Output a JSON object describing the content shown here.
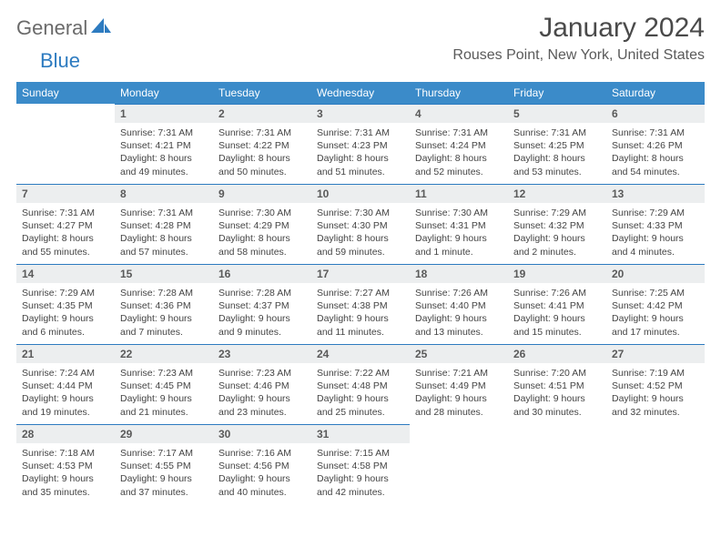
{
  "logo": {
    "part1": "General",
    "part2": "Blue"
  },
  "title": "January 2024",
  "location": "Rouses Point, New York, United States",
  "colors": {
    "header_bg": "#3b8bc9",
    "daynum_bg": "#eceeef",
    "border": "#2d7bc0",
    "logo_gray": "#6a6a6a",
    "logo_blue": "#2d7bc0"
  },
  "weekdays": [
    "Sunday",
    "Monday",
    "Tuesday",
    "Wednesday",
    "Thursday",
    "Friday",
    "Saturday"
  ],
  "start_offset": 1,
  "days": [
    {
      "n": 1,
      "sr": "7:31 AM",
      "ss": "4:21 PM",
      "dl": "8 hours and 49 minutes."
    },
    {
      "n": 2,
      "sr": "7:31 AM",
      "ss": "4:22 PM",
      "dl": "8 hours and 50 minutes."
    },
    {
      "n": 3,
      "sr": "7:31 AM",
      "ss": "4:23 PM",
      "dl": "8 hours and 51 minutes."
    },
    {
      "n": 4,
      "sr": "7:31 AM",
      "ss": "4:24 PM",
      "dl": "8 hours and 52 minutes."
    },
    {
      "n": 5,
      "sr": "7:31 AM",
      "ss": "4:25 PM",
      "dl": "8 hours and 53 minutes."
    },
    {
      "n": 6,
      "sr": "7:31 AM",
      "ss": "4:26 PM",
      "dl": "8 hours and 54 minutes."
    },
    {
      "n": 7,
      "sr": "7:31 AM",
      "ss": "4:27 PM",
      "dl": "8 hours and 55 minutes."
    },
    {
      "n": 8,
      "sr": "7:31 AM",
      "ss": "4:28 PM",
      "dl": "8 hours and 57 minutes."
    },
    {
      "n": 9,
      "sr": "7:30 AM",
      "ss": "4:29 PM",
      "dl": "8 hours and 58 minutes."
    },
    {
      "n": 10,
      "sr": "7:30 AM",
      "ss": "4:30 PM",
      "dl": "8 hours and 59 minutes."
    },
    {
      "n": 11,
      "sr": "7:30 AM",
      "ss": "4:31 PM",
      "dl": "9 hours and 1 minute."
    },
    {
      "n": 12,
      "sr": "7:29 AM",
      "ss": "4:32 PM",
      "dl": "9 hours and 2 minutes."
    },
    {
      "n": 13,
      "sr": "7:29 AM",
      "ss": "4:33 PM",
      "dl": "9 hours and 4 minutes."
    },
    {
      "n": 14,
      "sr": "7:29 AM",
      "ss": "4:35 PM",
      "dl": "9 hours and 6 minutes."
    },
    {
      "n": 15,
      "sr": "7:28 AM",
      "ss": "4:36 PM",
      "dl": "9 hours and 7 minutes."
    },
    {
      "n": 16,
      "sr": "7:28 AM",
      "ss": "4:37 PM",
      "dl": "9 hours and 9 minutes."
    },
    {
      "n": 17,
      "sr": "7:27 AM",
      "ss": "4:38 PM",
      "dl": "9 hours and 11 minutes."
    },
    {
      "n": 18,
      "sr": "7:26 AM",
      "ss": "4:40 PM",
      "dl": "9 hours and 13 minutes."
    },
    {
      "n": 19,
      "sr": "7:26 AM",
      "ss": "4:41 PM",
      "dl": "9 hours and 15 minutes."
    },
    {
      "n": 20,
      "sr": "7:25 AM",
      "ss": "4:42 PM",
      "dl": "9 hours and 17 minutes."
    },
    {
      "n": 21,
      "sr": "7:24 AM",
      "ss": "4:44 PM",
      "dl": "9 hours and 19 minutes."
    },
    {
      "n": 22,
      "sr": "7:23 AM",
      "ss": "4:45 PM",
      "dl": "9 hours and 21 minutes."
    },
    {
      "n": 23,
      "sr": "7:23 AM",
      "ss": "4:46 PM",
      "dl": "9 hours and 23 minutes."
    },
    {
      "n": 24,
      "sr": "7:22 AM",
      "ss": "4:48 PM",
      "dl": "9 hours and 25 minutes."
    },
    {
      "n": 25,
      "sr": "7:21 AM",
      "ss": "4:49 PM",
      "dl": "9 hours and 28 minutes."
    },
    {
      "n": 26,
      "sr": "7:20 AM",
      "ss": "4:51 PM",
      "dl": "9 hours and 30 minutes."
    },
    {
      "n": 27,
      "sr": "7:19 AM",
      "ss": "4:52 PM",
      "dl": "9 hours and 32 minutes."
    },
    {
      "n": 28,
      "sr": "7:18 AM",
      "ss": "4:53 PM",
      "dl": "9 hours and 35 minutes."
    },
    {
      "n": 29,
      "sr": "7:17 AM",
      "ss": "4:55 PM",
      "dl": "9 hours and 37 minutes."
    },
    {
      "n": 30,
      "sr": "7:16 AM",
      "ss": "4:56 PM",
      "dl": "9 hours and 40 minutes."
    },
    {
      "n": 31,
      "sr": "7:15 AM",
      "ss": "4:58 PM",
      "dl": "9 hours and 42 minutes."
    }
  ],
  "labels": {
    "sunrise": "Sunrise:",
    "sunset": "Sunset:",
    "daylight": "Daylight:"
  }
}
